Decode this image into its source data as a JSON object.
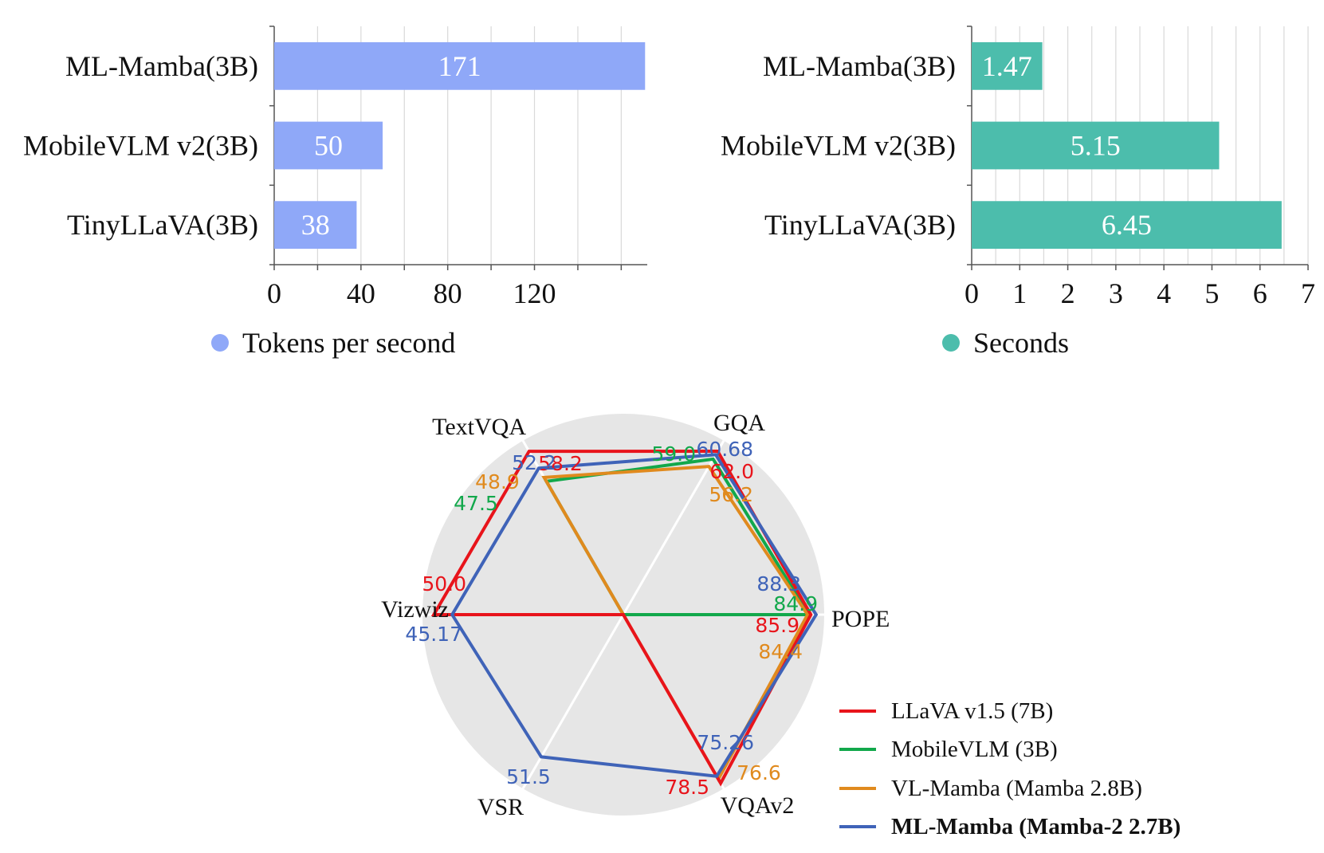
{
  "chart_data": [
    {
      "type": "bar",
      "orientation": "horizontal",
      "categories": [
        "ML-Mamba(3B)",
        "MobileVLM v2(3B)",
        "TinyLLaVA(3B)"
      ],
      "series": [
        {
          "name": "Tokens per second",
          "values": [
            171,
            50,
            38
          ],
          "color": "#8FA8F8"
        }
      ],
      "data_labels": [
        "171",
        "50",
        "38"
      ],
      "xlim": [
        0,
        172
      ],
      "xticks": [
        0,
        40,
        80,
        120
      ],
      "xtick_labels": [
        "0",
        "40",
        "80",
        "120"
      ],
      "grid": true,
      "legend": {
        "position": "bottom",
        "label": "Tokens per second"
      }
    },
    {
      "type": "bar",
      "orientation": "horizontal",
      "categories": [
        "ML-Mamba(3B)",
        "MobileVLM v2(3B)",
        "TinyLLaVA(3B)"
      ],
      "series": [
        {
          "name": "Seconds",
          "values": [
            1.47,
            5.15,
            6.45
          ],
          "color": "#4CBDAC"
        }
      ],
      "data_labels": [
        "1.47",
        "5.15",
        "6.45"
      ],
      "xlim": [
        0,
        7
      ],
      "xticks": [
        0,
        1,
        2,
        3,
        4,
        5,
        6,
        7
      ],
      "xtick_labels": [
        "0",
        "1",
        "2",
        "3",
        "4",
        "5",
        "6",
        "7"
      ],
      "grid": true,
      "legend": {
        "position": "bottom",
        "label": "Seconds"
      }
    },
    {
      "type": "radar",
      "axes": [
        "GQA",
        "POPE",
        "VQAv2",
        "VSR",
        "Vizwiz",
        "TextVQA"
      ],
      "series": [
        {
          "name": "LLaVA v1.5 (7B)",
          "color": "#E8141B",
          "values": [
            62.0,
            85.9,
            78.5,
            null,
            50.0,
            58.2
          ],
          "labels": [
            "62.0",
            "85.9",
            "78.5",
            "",
            "50.0",
            "58.2"
          ]
        },
        {
          "name": "MobileVLM (3B)",
          "color": "#12A84B",
          "values": [
            59.0,
            84.9,
            null,
            null,
            null,
            47.5
          ],
          "labels": [
            "59.0",
            "84.9",
            "",
            "",
            "",
            "47.5"
          ]
        },
        {
          "name": "VL-Mamba (Mamba  2.8B)",
          "color": "#E08A1E",
          "values": [
            56.2,
            84.4,
            76.6,
            null,
            null,
            48.9
          ],
          "labels": [
            "56.2",
            "84.4",
            "76.6",
            "",
            "",
            "48.9"
          ]
        },
        {
          "name": "ML-Mamba (Mamba-2  2.7B)",
          "color": "#3F63B8",
          "bold": true,
          "values": [
            60.68,
            88.3,
            75.26,
            51.5,
            45.17,
            52.2
          ],
          "labels": [
            "60.68",
            "88.3",
            "75.26",
            "51.5",
            "45.17",
            "52.2"
          ]
        }
      ],
      "legend": {
        "position": "bottom-right"
      }
    }
  ]
}
